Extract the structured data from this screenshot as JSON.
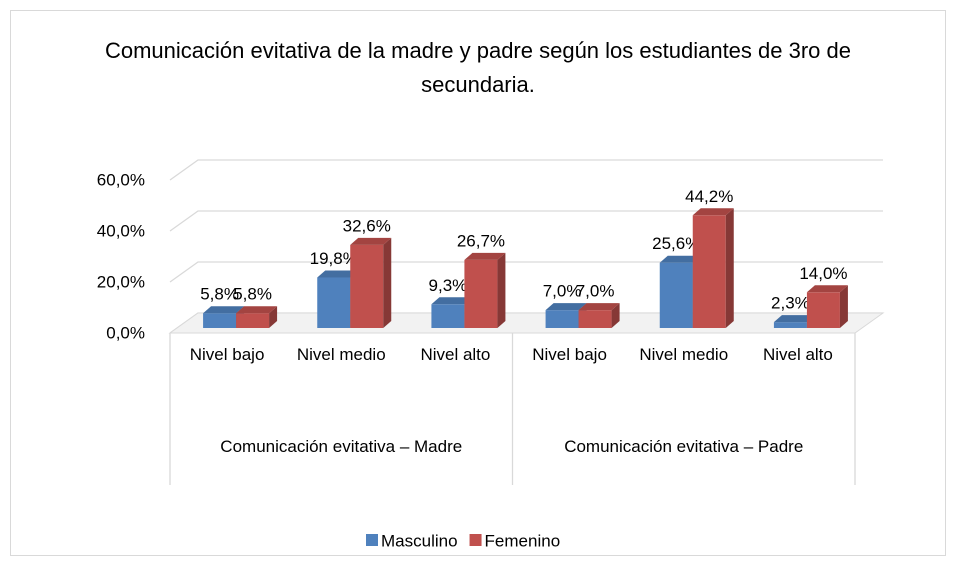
{
  "chart_data": {
    "type": "bar3d",
    "title": "Comunicación evitativa de la madre y padre según los estudiantes de 3ro de secundaria.",
    "groups": [
      "Comunicación evitativa – Madre",
      "Comunicación evitativa – Padre"
    ],
    "categories": [
      "Nivel bajo",
      "Nivel medio",
      "Nivel alto",
      "Nivel bajo",
      "Nivel medio",
      "Nivel alto"
    ],
    "series": [
      {
        "name": "Masculino",
        "color": "#4f81bd",
        "values": [
          5.8,
          19.8,
          9.3,
          7.0,
          25.6,
          2.3
        ],
        "value_labels": [
          "5,8%",
          "19,8%",
          "9,3%",
          "7,0%",
          "25,6%",
          "2,3%"
        ]
      },
      {
        "name": "Femenino",
        "color": "#c0504d",
        "values": [
          5.8,
          32.6,
          26.7,
          7.0,
          44.2,
          14.0
        ],
        "value_labels": [
          "5,8%",
          "32,6%",
          "26,7%",
          "7,0%",
          "44,2%",
          "14,0%"
        ]
      }
    ],
    "ylim": [
      0,
      60
    ],
    "yticks": [
      {
        "value": 0,
        "label": "0,0%"
      },
      {
        "value": 20,
        "label": "20,0%"
      },
      {
        "value": 40,
        "label": "40,0%"
      },
      {
        "value": 60,
        "label": "60,0%"
      }
    ],
    "grid": true,
    "legend": "bottom"
  }
}
